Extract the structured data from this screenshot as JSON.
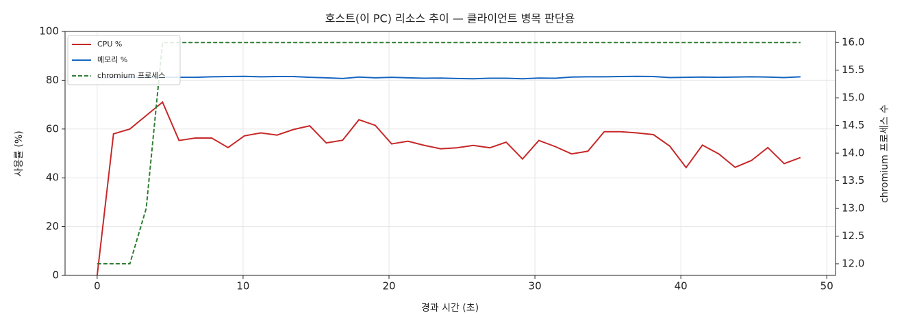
{
  "chart_data": {
    "type": "line",
    "title": "호스트(이 PC) 리소스 추이 — 클라이언트 병목 판단용",
    "xlabel": "경과 시간 (초)",
    "ylabel": "사용률 (%)",
    "y2label": "chromium 프로세스 수",
    "x": [
      0,
      1.12,
      2.24,
      3.36,
      4.48,
      5.61,
      6.73,
      7.85,
      8.97,
      10.09,
      11.21,
      12.33,
      13.45,
      14.57,
      15.7,
      16.82,
      17.94,
      19.06,
      20.18,
      21.3,
      22.42,
      23.54,
      24.66,
      25.78,
      26.91,
      28.03,
      29.15,
      30.27,
      31.39,
      32.51,
      33.63,
      34.75,
      35.87,
      36.99,
      38.12,
      39.24,
      40.36,
      41.48,
      42.6,
      43.72,
      44.84,
      45.96,
      47.08,
      48.2
    ],
    "series": [
      {
        "name": "CPU %",
        "color": "#c62828",
        "linestyle": "solid",
        "values": [
          0,
          58,
          60,
          65.5,
          71,
          55.3,
          56.3,
          56.3,
          52.4,
          57.2,
          58.4,
          57.5,
          59.8,
          61.3,
          54.3,
          55.4,
          63.8,
          61.5,
          53.9,
          55,
          53.3,
          51.9,
          52.3,
          53.3,
          52.3,
          54.6,
          47.7,
          55.3,
          52.8,
          49.8,
          50.9,
          58.9,
          58.9,
          58.4,
          57.7,
          53,
          44.2,
          53.4,
          49.8,
          44.3,
          47.1,
          52.4,
          45.8,
          48.3
        ]
      },
      {
        "name": "메모리 %",
        "color": "#1565c0",
        "linestyle": "solid",
        "values": [
          81,
          81.1,
          81.2,
          81.2,
          81.2,
          81.2,
          81.2,
          81.4,
          81.5,
          81.6,
          81.4,
          81.5,
          81.5,
          81.2,
          81,
          80.7,
          81.3,
          81,
          81.2,
          81,
          80.8,
          80.9,
          80.7,
          80.6,
          80.8,
          80.8,
          80.6,
          80.9,
          80.8,
          81.3,
          81.4,
          81.4,
          81.5,
          81.6,
          81.5,
          81.1,
          81.2,
          81.3,
          81.2,
          81.3,
          81.4,
          81.3,
          81.1,
          81.4
        ]
      },
      {
        "name": "chromium 프로세스",
        "color": "#2e7d32",
        "linestyle": "dashed",
        "axis": "y2",
        "values": [
          12,
          12,
          12,
          13,
          16,
          16,
          16,
          16,
          16,
          16,
          16,
          16,
          16,
          16,
          16,
          16,
          16,
          16,
          16,
          16,
          16,
          16,
          16,
          16,
          16,
          16,
          16,
          16,
          16,
          16,
          16,
          16,
          16,
          16,
          16,
          16,
          16,
          16,
          16,
          16,
          16,
          16,
          16,
          16
        ]
      }
    ],
    "xlim": [
      -2.2,
      50.6
    ],
    "xticks": [
      0,
      10,
      20,
      30,
      40,
      50
    ],
    "ylim": [
      0,
      100
    ],
    "yticks": [
      0,
      20,
      40,
      60,
      80,
      100
    ],
    "y2lim": [
      11.79,
      16.2
    ],
    "y2ticks": [
      {
        "value": 12,
        "label": "12.0"
      },
      12.5,
      {
        "value": 13,
        "label": "13.0"
      },
      13.5,
      {
        "value": 14,
        "label": "14.0"
      },
      14.5,
      {
        "value": 15,
        "label": "15.0"
      },
      15.5,
      {
        "value": 16,
        "label": "16.0"
      }
    ],
    "grid": true,
    "legend": "upper-left"
  }
}
